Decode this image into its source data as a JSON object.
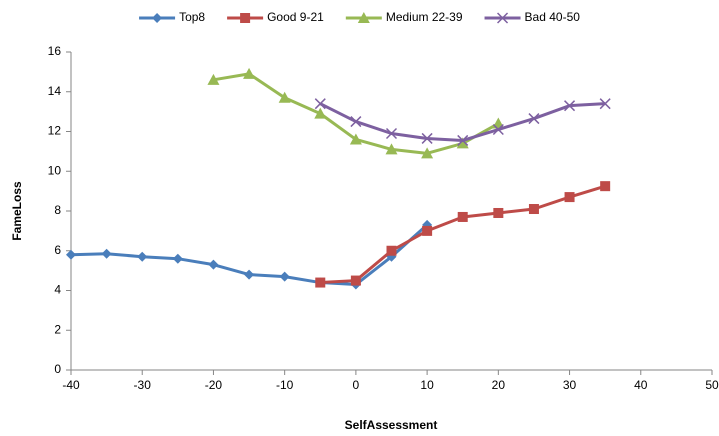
{
  "chart_data": {
    "type": "line",
    "x_label": "SelfAssessment",
    "y_label": "FameLoss",
    "xlim": [
      -40,
      50
    ],
    "xticks": [
      -40,
      -30,
      -20,
      -10,
      0,
      10,
      20,
      30,
      40,
      50
    ],
    "ylim": [
      0,
      16
    ],
    "yticks": [
      0,
      2,
      4,
      6,
      8,
      10,
      12,
      14,
      16
    ],
    "grid": false,
    "legend": "top",
    "series": [
      {
        "name": "Top8",
        "color": "#4a7ebb",
        "marker": "diamond",
        "x": [
          -40,
          -35,
          -30,
          -25,
          -20,
          -15,
          -10,
          -5,
          0,
          5,
          10
        ],
        "values": [
          5.8,
          5.85,
          5.7,
          5.6,
          5.3,
          4.8,
          4.7,
          4.4,
          4.3,
          5.7,
          7.3
        ]
      },
      {
        "name": "Good 9-21",
        "color": "#be4b48",
        "marker": "square",
        "x": [
          -5,
          0,
          5,
          10,
          15,
          20,
          25,
          30,
          35
        ],
        "values": [
          4.4,
          4.5,
          6.0,
          7.0,
          7.7,
          7.9,
          8.1,
          8.7,
          9.25
        ]
      },
      {
        "name": "Medium 22-39",
        "color": "#98b954",
        "marker": "triangle",
        "x": [
          -20,
          -15,
          -10,
          -5,
          0,
          5,
          10,
          15,
          20
        ],
        "values": [
          14.6,
          14.9,
          13.7,
          12.9,
          11.6,
          11.1,
          10.9,
          11.4,
          12.4
        ]
      },
      {
        "name": "Bad 40-50",
        "color": "#7d60a0",
        "marker": "x",
        "x": [
          -5,
          0,
          5,
          10,
          15,
          20,
          25,
          30,
          35
        ],
        "values": [
          13.4,
          12.5,
          11.9,
          11.65,
          11.55,
          12.1,
          12.65,
          13.3,
          13.4
        ]
      }
    ]
  }
}
